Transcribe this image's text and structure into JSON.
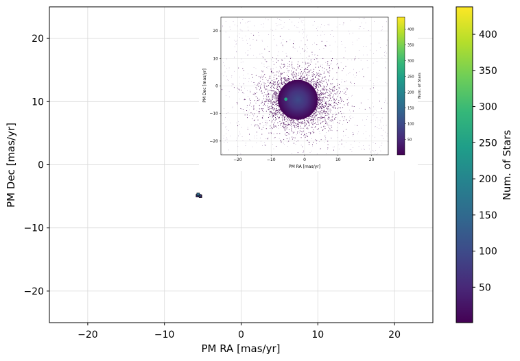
{
  "chart_data": [
    {
      "type": "heatmap",
      "role": "main",
      "xlabel": "PM RA [mas/yr]",
      "ylabel": "PM Dec [mas/yr]",
      "xlim": [
        -25,
        25
      ],
      "ylim": [
        -25,
        25
      ],
      "xticks": [
        -20,
        -10,
        0,
        10,
        20
      ],
      "yticks": [
        -20,
        -10,
        0,
        10,
        20
      ],
      "grid": true,
      "colorbar": {
        "label": "Num. of Stars",
        "colormap": "viridis",
        "range": [
          1,
          438
        ],
        "ticks": [
          50,
          100,
          150,
          200,
          250,
          300,
          350,
          400
        ]
      },
      "points": [
        {
          "x": -5.6,
          "y": -4.7,
          "count": 150
        },
        {
          "x": -5.4,
          "y": -4.9,
          "count": 100
        },
        {
          "x": -5.7,
          "y": -4.9,
          "count": 60
        },
        {
          "x": -5.3,
          "y": -5.0,
          "count": 30
        }
      ]
    },
    {
      "type": "heatmap",
      "role": "inset",
      "xlabel": "PM RA [mas/yr]",
      "ylabel": "PM Dec [mas/yr]",
      "xlim": [
        -25,
        25
      ],
      "ylim": [
        -25,
        25
      ],
      "xticks": [
        -20,
        -10,
        0,
        10,
        20
      ],
      "yticks": [
        -20,
        -10,
        0,
        10,
        20
      ],
      "grid": true,
      "colorbar": {
        "label": "Num. of Stars",
        "colormap": "viridis",
        "range": [
          1,
          438
        ],
        "ticks": [
          50,
          100,
          150,
          200,
          250,
          300,
          350,
          400
        ]
      },
      "cluster_center": {
        "x": -2,
        "y": -5
      },
      "hotspot": {
        "x": -5.6,
        "y": -4.8,
        "count": 260
      }
    }
  ],
  "colors": {
    "viridis": [
      "#440154",
      "#482878",
      "#3e4a89",
      "#31688e",
      "#26828e",
      "#1f9e89",
      "#35b779",
      "#6ece58",
      "#b5de2b",
      "#fde725"
    ],
    "grid": "#d9d9d9",
    "axis": "#000000"
  }
}
